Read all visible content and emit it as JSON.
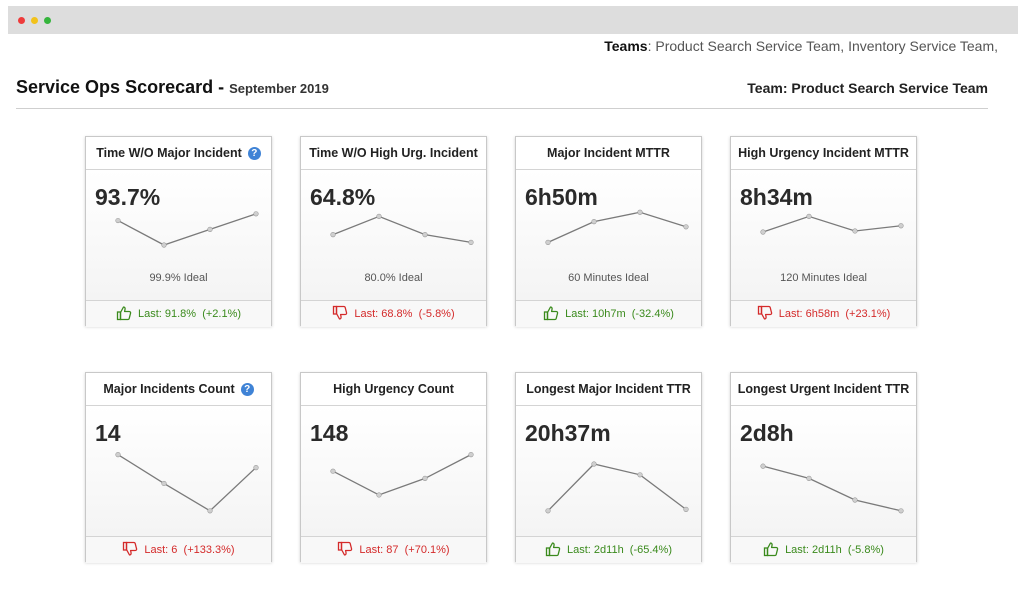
{
  "window": {
    "controls": [
      {
        "name": "close-dot",
        "color": "#ee3b3b"
      },
      {
        "name": "minimize-dot",
        "color": "#f2c21b"
      },
      {
        "name": "maximize-dot",
        "color": "#35b53c"
      }
    ]
  },
  "teams_line": {
    "label": "Teams",
    "separator": ":",
    "value": " Product Search Service Team, Inventory Service Team,"
  },
  "header": {
    "title": "Service Ops Scorecard -",
    "month": "September 2019",
    "team": "Team: Product Search Service Team"
  },
  "colors": {
    "good": "#3a8a1c",
    "bad": "#d42a2a",
    "help": "#3f83d6",
    "line": "#7a7a7a"
  },
  "cards": [
    {
      "title": "Time W/O Major Incident",
      "help": true,
      "value": "93.7%",
      "ideal": "99.9% Ideal",
      "last": "Last: 91.8%  (+2.1%)",
      "status": "good",
      "icon": "thumbs-up-icon",
      "trend": [
        0.72,
        0.25,
        0.55,
        0.85
      ]
    },
    {
      "title": "Time W/O High Urg. Incident",
      "help": false,
      "value": "64.8%",
      "ideal": "80.0% Ideal",
      "last": "Last: 68.8%  (-5.8%)",
      "status": "bad",
      "icon": "thumbs-down-icon",
      "trend": [
        0.45,
        0.8,
        0.45,
        0.3
      ]
    },
    {
      "title": "Major Incident MTTR",
      "help": false,
      "value": "6h50m",
      "ideal": "60 Minutes Ideal",
      "last": "Last: 10h7m  (-32.4%)",
      "status": "good",
      "icon": "thumbs-up-icon",
      "trend": [
        0.3,
        0.7,
        0.88,
        0.6
      ]
    },
    {
      "title": "High Urgency Incident MTTR",
      "help": false,
      "value": "8h34m",
      "ideal": "120 Minutes Ideal",
      "last": "Last: 6h58m  (+23.1%)",
      "status": "bad",
      "icon": "thumbs-down-icon",
      "trend": [
        0.5,
        0.8,
        0.52,
        0.62
      ]
    },
    {
      "title": "Major Incidents Count",
      "help": true,
      "value": "14",
      "ideal": "",
      "last": "Last: 6  (+133.3%)",
      "status": "bad",
      "icon": "thumbs-down-icon",
      "trend": [
        0.88,
        0.48,
        0.1,
        0.7
      ]
    },
    {
      "title": "High Urgency Count",
      "help": false,
      "value": "148",
      "ideal": "",
      "last": "Last: 87  (+70.1%)",
      "status": "bad",
      "icon": "thumbs-down-icon",
      "trend": [
        0.65,
        0.32,
        0.55,
        0.88
      ]
    },
    {
      "title": "Longest Major Incident TTR",
      "help": false,
      "value": "20h37m",
      "ideal": "",
      "last": "Last: 2d11h  (-65.4%)",
      "status": "good",
      "icon": "thumbs-up-icon",
      "trend": [
        0.1,
        0.75,
        0.6,
        0.12
      ]
    },
    {
      "title": "Longest Urgent Incident TTR",
      "help": false,
      "value": "2d8h",
      "ideal": "",
      "last": "Last: 2d11h  (-5.8%)",
      "status": "good",
      "icon": "thumbs-up-icon",
      "trend": [
        0.72,
        0.55,
        0.25,
        0.1
      ]
    }
  ]
}
